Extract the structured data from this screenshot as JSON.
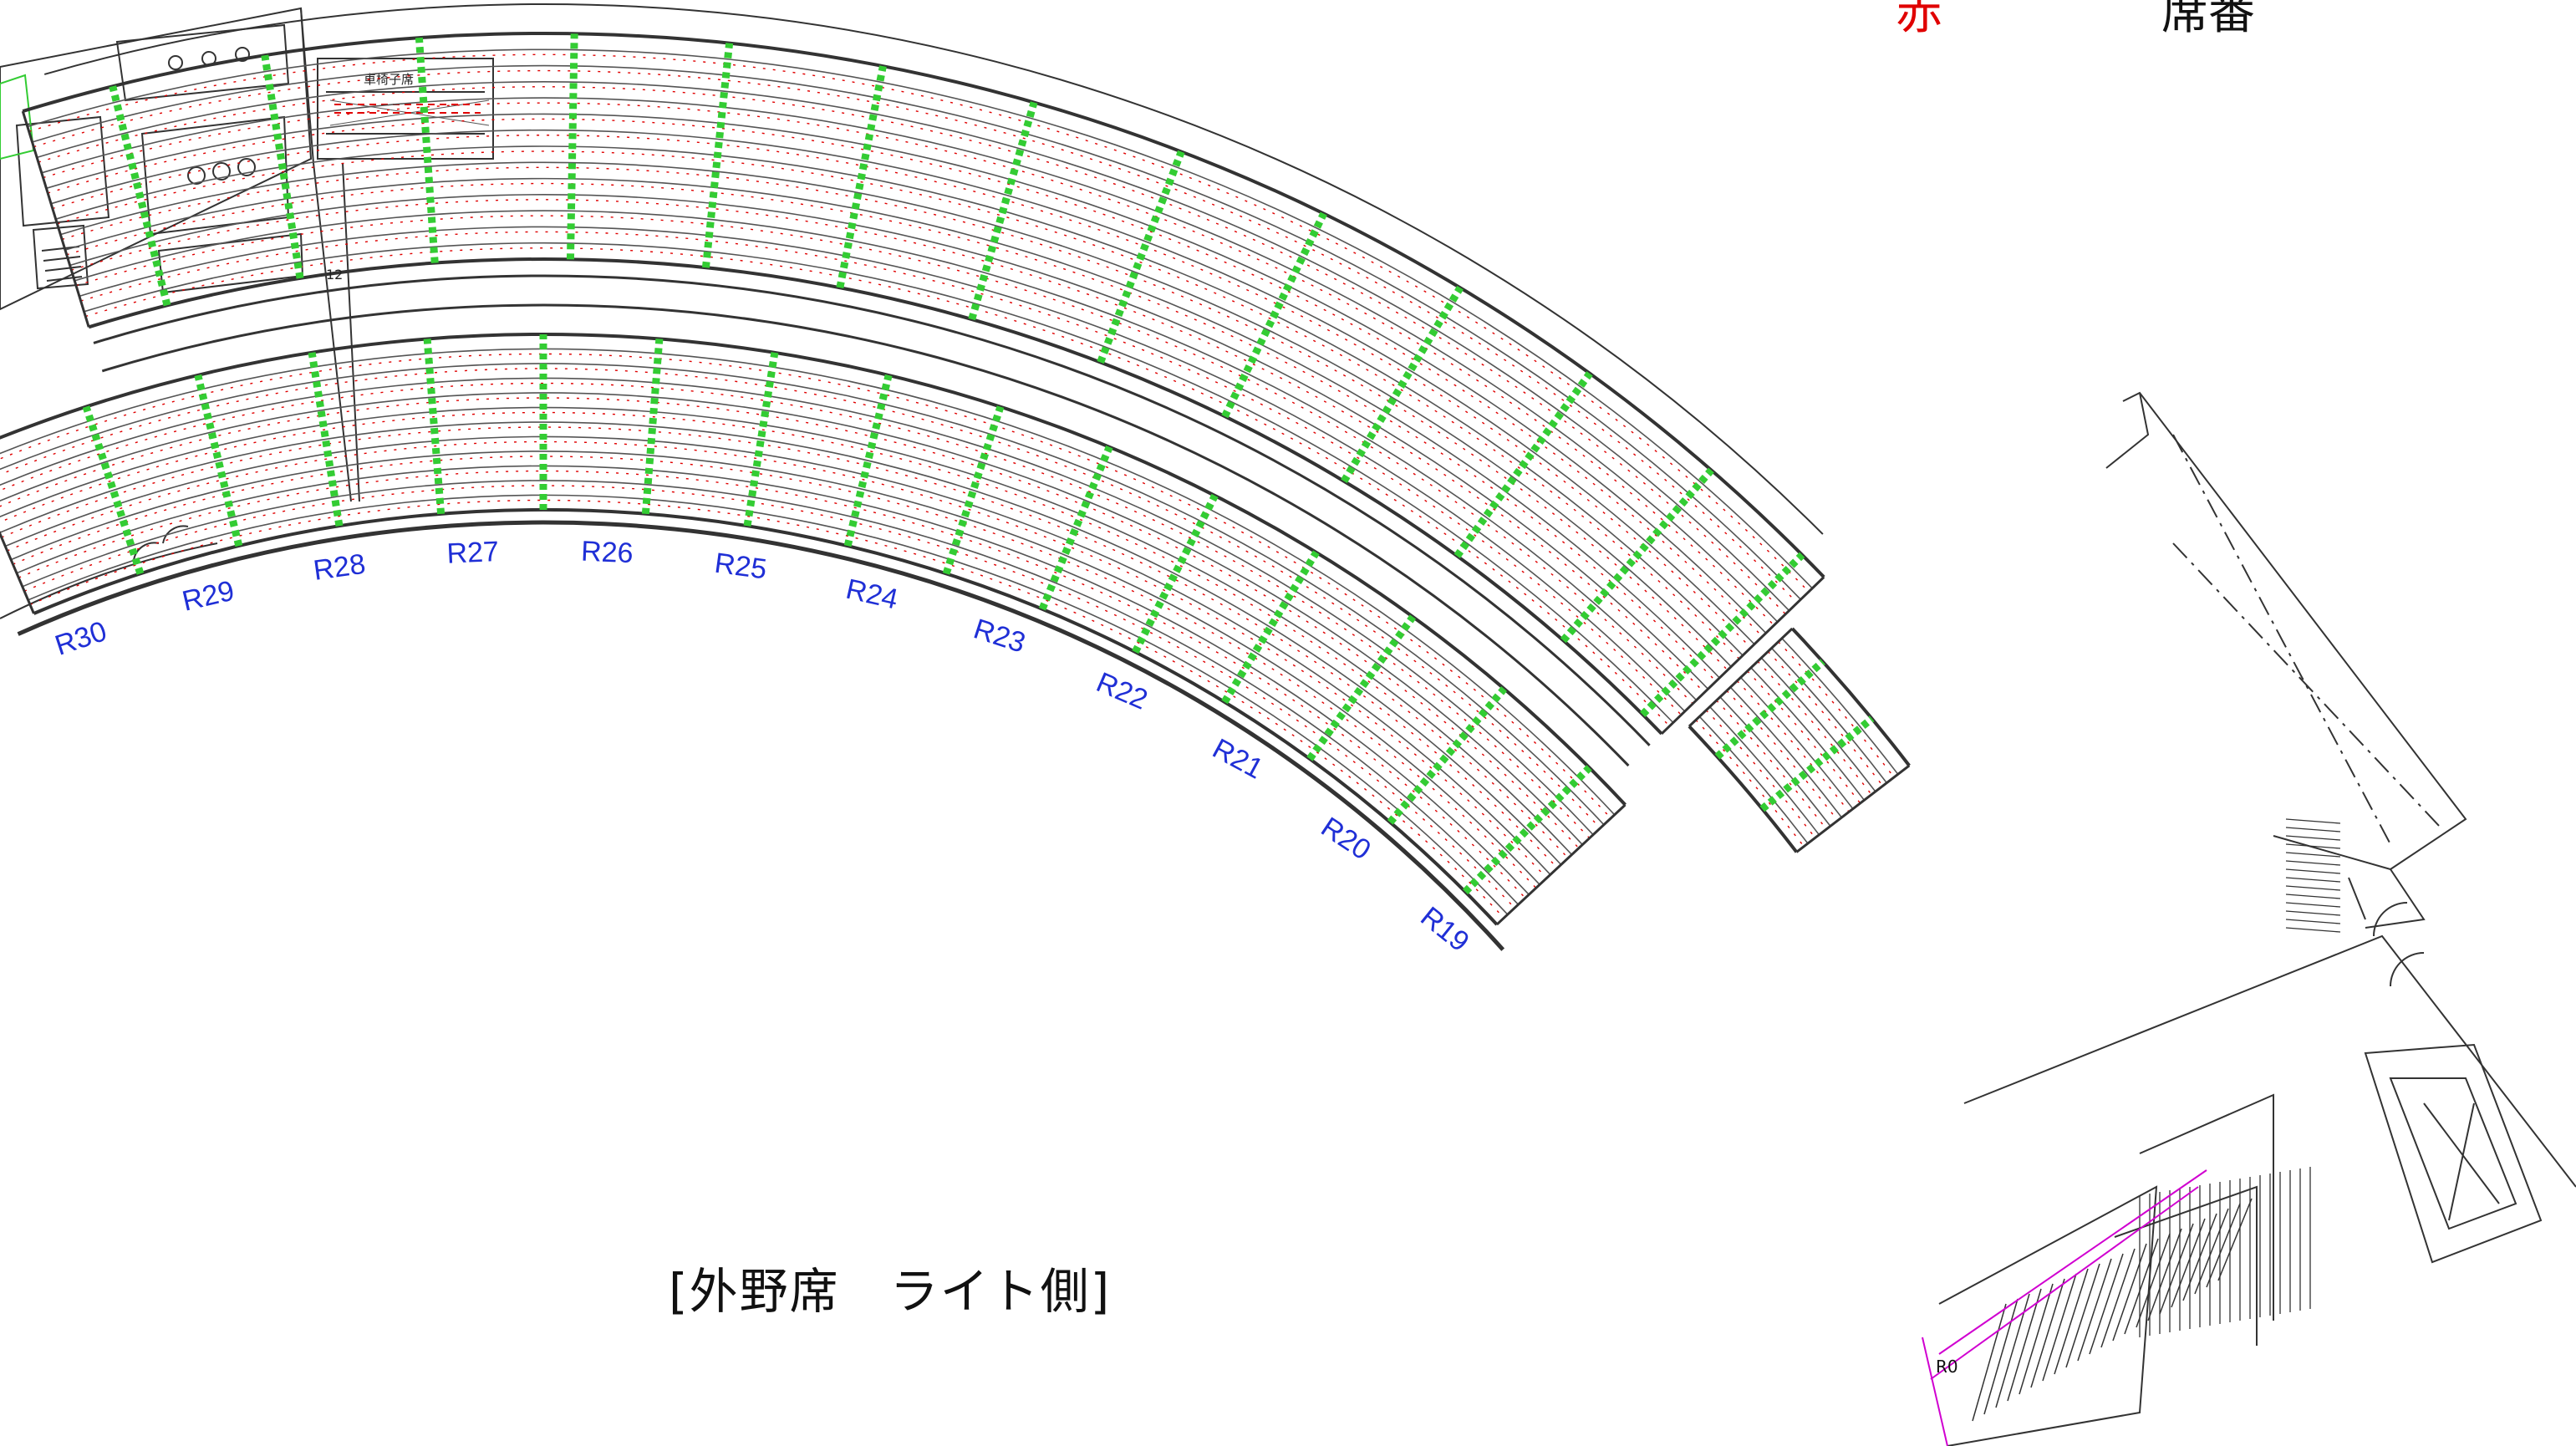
{
  "legend": {
    "red_label": "赤",
    "black_label": "席番",
    "red_color": "#e00000",
    "black_color": "#111111"
  },
  "caption": "[外野席　ライト側]",
  "room_label": "車椅子席",
  "row_marker": "12",
  "corner_marker": "R0",
  "colors": {
    "line": "#333333",
    "aisle": "#33cc33",
    "seat_mark": "#e00000",
    "section_label": "#1f2fd6",
    "magenta": "#d000d0"
  },
  "sections": {
    "labels": [
      "R30",
      "R29",
      "R28",
      "R27",
      "R26",
      "R25",
      "R24",
      "R23",
      "R22",
      "R21",
      "R20",
      "R19"
    ]
  }
}
